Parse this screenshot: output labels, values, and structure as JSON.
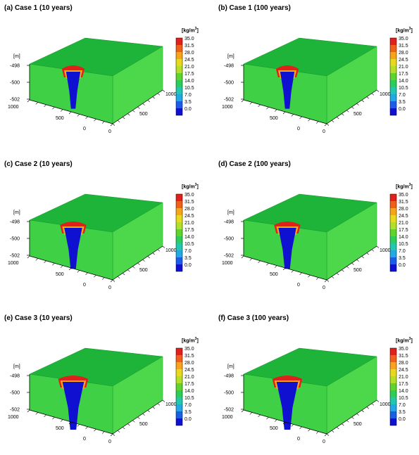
{
  "units": {
    "depth_unit": "[m]",
    "colorbar_unit_base": "[kg/m",
    "colorbar_unit_exp": "3",
    "colorbar_unit_end": "]"
  },
  "depth_ticks": [
    "-498",
    "-500",
    "-502"
  ],
  "horizontal_ticks_left": [
    "1000",
    "500",
    "0"
  ],
  "horizontal_ticks_right": [
    "0",
    "500",
    "1000"
  ],
  "colorbar": {
    "labels": [
      "35.0",
      "31.5",
      "28.0",
      "24.5",
      "21.0",
      "17.5",
      "14.0",
      "10.5",
      "7.0",
      "3.5",
      "0.0"
    ],
    "colors": [
      "#e0201a",
      "#f0601a",
      "#f5a41c",
      "#e8d81e",
      "#b4de28",
      "#5ed42c",
      "#2ccd58",
      "#22c8ae",
      "#22a8e4",
      "#1a5ee8",
      "#1010d0"
    ]
  },
  "panels": [
    {
      "title": "(a) Case 1 (10 years)",
      "plume_depth": 0.78,
      "plume_width": 0.62
    },
    {
      "title": "(b) Case 1 (100 years)",
      "plume_depth": 0.78,
      "plume_width": 0.62
    },
    {
      "title": "(c) Case 2 (10 years)",
      "plume_depth": 0.86,
      "plume_width": 0.72
    },
    {
      "title": "(d) Case 2 (100 years)",
      "plume_depth": 0.86,
      "plume_width": 0.72
    },
    {
      "title": "(e) Case 3 (10 years)",
      "plume_depth": 1.0,
      "plume_width": 0.82
    },
    {
      "title": "(f) Case 3 (100 years)",
      "plume_depth": 1.0,
      "plume_width": 0.82
    }
  ]
}
